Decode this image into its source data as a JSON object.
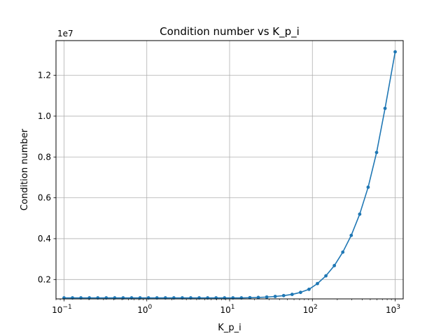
{
  "chart_data": {
    "type": "line",
    "title": "Condition number vs K_p_i",
    "xlabel": "K_p_i",
    "ylabel": "Condition number",
    "x_scale": "log",
    "xlim": [
      0.08,
      1250
    ],
    "ylim": [
      1050000.0,
      13700000.0
    ],
    "y_offset_label": "1e7",
    "x_ticks": [
      {
        "value": 0.1,
        "base": "10",
        "exp": "−1"
      },
      {
        "value": 1,
        "base": "10",
        "exp": "0"
      },
      {
        "value": 10,
        "base": "10",
        "exp": "1"
      },
      {
        "value": 100,
        "base": "10",
        "exp": "2"
      },
      {
        "value": 1000,
        "base": "10",
        "exp": "3"
      }
    ],
    "y_ticks": [
      {
        "value": 2000000.0,
        "label": "0.2"
      },
      {
        "value": 4000000.0,
        "label": "0.4"
      },
      {
        "value": 6000000.0,
        "label": "0.6"
      },
      {
        "value": 8000000.0,
        "label": "0.8"
      },
      {
        "value": 10000000.0,
        "label": "1.0"
      },
      {
        "value": 12000000.0,
        "label": "1.2"
      }
    ],
    "grid": true,
    "color": "#1f77b4",
    "series": [
      {
        "x": [
          0.1,
          0.1265,
          0.16,
          0.2024,
          0.256,
          0.3237,
          0.4095,
          0.5179,
          0.6551,
          0.8286,
          1.048,
          1.326,
          1.677,
          2.121,
          2.683,
          3.393,
          4.292,
          5.429,
          6.866,
          8.685,
          10.98,
          13.89,
          17.58,
          22.23,
          28.12,
          35.56,
          44.98,
          56.9,
          71.97,
          91.03,
          115.1,
          145.6,
          184.2,
          233.0,
          294.7,
          372.8,
          471.5,
          596.4,
          754.3,
          1000
        ],
        "values": [
          1100000.0,
          1100000.0,
          1100000.0,
          1100000.0,
          1100000.0,
          1100000.0,
          1100000.0,
          1100000.0,
          1100000.0,
          1100000.0,
          1100000.0,
          1100000.0,
          1100000.0,
          1100000.0,
          1100000.0,
          1100000.0,
          1100000.0,
          1100000.0,
          1100000.0,
          1100000.0,
          1100000.0,
          1100000.0,
          1110000.0,
          1120000.0,
          1140000.0,
          1170000.0,
          1210000.0,
          1270000.0,
          1370000.0,
          1520000.0,
          1800000.0,
          2180000.0,
          2680000.0,
          3340000.0,
          4160000.0,
          5200000.0,
          6520000.0,
          8220000.0,
          10380000.0,
          13150000.0
        ]
      }
    ]
  }
}
